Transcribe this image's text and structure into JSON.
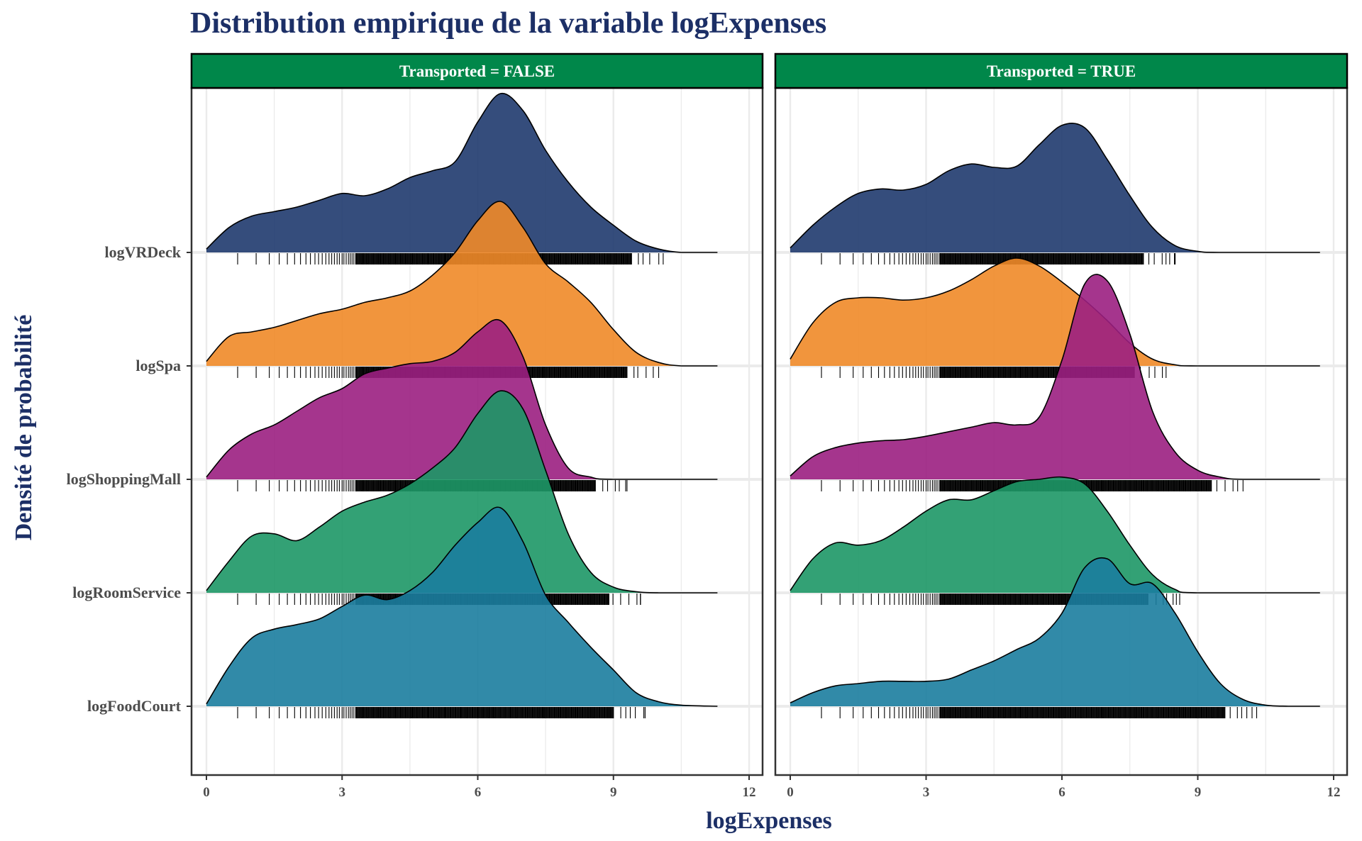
{
  "chart_data": {
    "type": "ridgeline",
    "title": "Distribution empirique de la variable logExpenses",
    "xlabel": "logExpenses",
    "ylabel": "Densité de probabilité",
    "xlim": [
      0,
      12
    ],
    "x_ticks": [
      0,
      3,
      6,
      9,
      12
    ],
    "strip_color": "#00874a",
    "variables": [
      "logFoodCourt",
      "logRoomService",
      "logShoppingMall",
      "logSpa",
      "logVRDeck"
    ],
    "colors": {
      "logVRDeck": "#1f3a6e",
      "logSpa": "#ef8a28",
      "logShoppingMall": "#9b1f81",
      "logRoomService": "#1d9766",
      "logFoodCourt": "#1b7d9e"
    },
    "panels": [
      {
        "label": "Transported = FALSE",
        "ridges": [
          {
            "variable": "logFoodCourt",
            "peak": 1.75,
            "rug_max": 9.7,
            "density": [
              [
                0,
                0.02
              ],
              [
                0.5,
                0.35
              ],
              [
                1,
                0.6
              ],
              [
                1.5,
                0.68
              ],
              [
                2,
                0.72
              ],
              [
                2.5,
                0.77
              ],
              [
                3,
                0.88
              ],
              [
                3.5,
                0.98
              ],
              [
                4,
                0.94
              ],
              [
                4.5,
                1.02
              ],
              [
                5,
                1.18
              ],
              [
                5.5,
                1.42
              ],
              [
                6,
                1.62
              ],
              [
                6.5,
                1.75
              ],
              [
                7,
                1.45
              ],
              [
                7.5,
                0.98
              ],
              [
                8,
                0.74
              ],
              [
                8.5,
                0.52
              ],
              [
                9,
                0.32
              ],
              [
                9.5,
                0.12
              ],
              [
                10,
                0.04
              ],
              [
                10.5,
                0.01
              ],
              [
                11.3,
                0
              ]
            ]
          },
          {
            "variable": "logRoomService",
            "peak": 1.78,
            "rug_max": 9.6,
            "density": [
              [
                0,
                0.02
              ],
              [
                0.5,
                0.28
              ],
              [
                1,
                0.5
              ],
              [
                1.5,
                0.52
              ],
              [
                2,
                0.46
              ],
              [
                2.5,
                0.58
              ],
              [
                3,
                0.72
              ],
              [
                3.5,
                0.8
              ],
              [
                4,
                0.86
              ],
              [
                4.5,
                0.96
              ],
              [
                5,
                1.1
              ],
              [
                5.5,
                1.28
              ],
              [
                6,
                1.58
              ],
              [
                6.5,
                1.78
              ],
              [
                7,
                1.62
              ],
              [
                7.5,
                1.08
              ],
              [
                8,
                0.52
              ],
              [
                8.5,
                0.18
              ],
              [
                9,
                0.05
              ],
              [
                9.5,
                0.01
              ],
              [
                10,
                0
              ],
              [
                11.3,
                0
              ]
            ]
          },
          {
            "variable": "logShoppingMall",
            "peak": 1.4,
            "rug_max": 9.3,
            "density": [
              [
                0,
                0.02
              ],
              [
                0.5,
                0.26
              ],
              [
                1,
                0.4
              ],
              [
                1.5,
                0.48
              ],
              [
                2,
                0.6
              ],
              [
                2.5,
                0.72
              ],
              [
                3,
                0.8
              ],
              [
                3.5,
                0.93
              ],
              [
                4,
                0.98
              ],
              [
                4.5,
                1.02
              ],
              [
                5,
                1.04
              ],
              [
                5.5,
                1.12
              ],
              [
                6,
                1.3
              ],
              [
                6.5,
                1.4
              ],
              [
                7,
                1.08
              ],
              [
                7.5,
                0.48
              ],
              [
                8,
                0.1
              ],
              [
                8.5,
                0.02
              ],
              [
                9,
                0
              ],
              [
                11.3,
                0
              ]
            ]
          },
          {
            "variable": "logSpa",
            "peak": 1.45,
            "rug_max": 10.0,
            "density": [
              [
                0,
                0.04
              ],
              [
                0.5,
                0.26
              ],
              [
                1,
                0.3
              ],
              [
                1.5,
                0.34
              ],
              [
                2,
                0.4
              ],
              [
                2.5,
                0.46
              ],
              [
                3,
                0.5
              ],
              [
                3.5,
                0.56
              ],
              [
                4,
                0.6
              ],
              [
                4.5,
                0.66
              ],
              [
                5,
                0.8
              ],
              [
                5.5,
                1.0
              ],
              [
                6,
                1.28
              ],
              [
                6.5,
                1.45
              ],
              [
                7,
                1.22
              ],
              [
                7.5,
                0.9
              ],
              [
                8,
                0.74
              ],
              [
                8.5,
                0.56
              ],
              [
                9,
                0.32
              ],
              [
                9.5,
                0.12
              ],
              [
                10,
                0.03
              ],
              [
                10.5,
                0
              ],
              [
                11.3,
                0
              ]
            ]
          },
          {
            "variable": "logVRDeck",
            "peak": 1.4,
            "rug_max": 10.1,
            "density": [
              [
                0,
                0.03
              ],
              [
                0.5,
                0.22
              ],
              [
                1,
                0.32
              ],
              [
                1.5,
                0.36
              ],
              [
                2,
                0.4
              ],
              [
                2.5,
                0.46
              ],
              [
                3,
                0.52
              ],
              [
                3.5,
                0.5
              ],
              [
                4,
                0.56
              ],
              [
                4.5,
                0.66
              ],
              [
                5,
                0.72
              ],
              [
                5.5,
                0.8
              ],
              [
                6,
                1.15
              ],
              [
                6.5,
                1.4
              ],
              [
                7,
                1.25
              ],
              [
                7.5,
                0.9
              ],
              [
                8,
                0.62
              ],
              [
                8.5,
                0.4
              ],
              [
                9,
                0.24
              ],
              [
                9.5,
                0.1
              ],
              [
                10,
                0.03
              ],
              [
                10.5,
                0
              ],
              [
                11.3,
                0
              ]
            ]
          }
        ]
      },
      {
        "label": "Transported = TRUE",
        "ridges": [
          {
            "variable": "logFoodCourt",
            "peak": 1.3,
            "rug_max": 10.3,
            "density": [
              [
                0,
                0.03
              ],
              [
                0.5,
                0.12
              ],
              [
                1,
                0.18
              ],
              [
                1.5,
                0.2
              ],
              [
                2,
                0.22
              ],
              [
                2.5,
                0.22
              ],
              [
                3,
                0.22
              ],
              [
                3.5,
                0.24
              ],
              [
                4,
                0.32
              ],
              [
                4.5,
                0.4
              ],
              [
                5,
                0.5
              ],
              [
                5.5,
                0.6
              ],
              [
                6,
                0.82
              ],
              [
                6.5,
                1.22
              ],
              [
                7,
                1.3
              ],
              [
                7.5,
                1.08
              ],
              [
                8,
                1.08
              ],
              [
                8.5,
                0.82
              ],
              [
                9,
                0.48
              ],
              [
                9.5,
                0.2
              ],
              [
                10,
                0.06
              ],
              [
                10.5,
                0.01
              ],
              [
                11,
                0
              ],
              [
                11.7,
                0
              ]
            ]
          },
          {
            "variable": "logRoomService",
            "peak": 1.05,
            "rug_max": 8.6,
            "density": [
              [
                0,
                0.02
              ],
              [
                0.5,
                0.3
              ],
              [
                1,
                0.44
              ],
              [
                1.5,
                0.42
              ],
              [
                2,
                0.46
              ],
              [
                2.5,
                0.58
              ],
              [
                3,
                0.72
              ],
              [
                3.5,
                0.82
              ],
              [
                4,
                0.82
              ],
              [
                4.5,
                0.9
              ],
              [
                5,
                0.98
              ],
              [
                5.5,
                1.0
              ],
              [
                6,
                1.02
              ],
              [
                6.5,
                0.96
              ],
              [
                7,
                0.72
              ],
              [
                7.5,
                0.42
              ],
              [
                8,
                0.16
              ],
              [
                8.5,
                0.03
              ],
              [
                9,
                0
              ],
              [
                11.7,
                0
              ]
            ]
          },
          {
            "variable": "logShoppingMall",
            "peak": 1.8,
            "rug_max": 10.0,
            "density": [
              [
                0,
                0.03
              ],
              [
                0.5,
                0.2
              ],
              [
                1,
                0.28
              ],
              [
                1.5,
                0.32
              ],
              [
                2,
                0.34
              ],
              [
                2.5,
                0.35
              ],
              [
                3,
                0.38
              ],
              [
                3.5,
                0.42
              ],
              [
                4,
                0.46
              ],
              [
                4.5,
                0.5
              ],
              [
                5,
                0.48
              ],
              [
                5.5,
                0.55
              ],
              [
                6,
                1.05
              ],
              [
                6.5,
                1.72
              ],
              [
                7,
                1.75
              ],
              [
                7.5,
                1.28
              ],
              [
                8,
                0.6
              ],
              [
                8.5,
                0.24
              ],
              [
                9,
                0.08
              ],
              [
                9.5,
                0.02
              ],
              [
                10,
                0
              ],
              [
                11.7,
                0
              ]
            ]
          },
          {
            "variable": "logSpa",
            "peak": 0.95,
            "rug_max": 8.3,
            "density": [
              [
                0,
                0.06
              ],
              [
                0.5,
                0.38
              ],
              [
                1,
                0.56
              ],
              [
                1.5,
                0.6
              ],
              [
                2,
                0.6
              ],
              [
                2.5,
                0.58
              ],
              [
                3,
                0.6
              ],
              [
                3.5,
                0.66
              ],
              [
                4,
                0.76
              ],
              [
                4.5,
                0.88
              ],
              [
                5,
                0.95
              ],
              [
                5.5,
                0.88
              ],
              [
                6,
                0.74
              ],
              [
                6.5,
                0.58
              ],
              [
                7,
                0.4
              ],
              [
                7.5,
                0.2
              ],
              [
                8,
                0.06
              ],
              [
                8.5,
                0.01
              ],
              [
                9,
                0
              ],
              [
                11.7,
                0
              ]
            ]
          },
          {
            "variable": "logVRDeck",
            "peak": 1.15,
            "rug_max": 8.5,
            "density": [
              [
                0,
                0.04
              ],
              [
                0.5,
                0.24
              ],
              [
                1,
                0.4
              ],
              [
                1.5,
                0.52
              ],
              [
                2,
                0.56
              ],
              [
                2.5,
                0.55
              ],
              [
                3,
                0.6
              ],
              [
                3.5,
                0.72
              ],
              [
                4,
                0.78
              ],
              [
                4.5,
                0.75
              ],
              [
                5,
                0.76
              ],
              [
                5.5,
                0.95
              ],
              [
                6,
                1.12
              ],
              [
                6.5,
                1.1
              ],
              [
                7,
                0.82
              ],
              [
                7.5,
                0.5
              ],
              [
                8,
                0.22
              ],
              [
                8.5,
                0.06
              ],
              [
                9,
                0.01
              ],
              [
                9.5,
                0
              ],
              [
                11.7,
                0
              ]
            ]
          }
        ]
      }
    ]
  }
}
